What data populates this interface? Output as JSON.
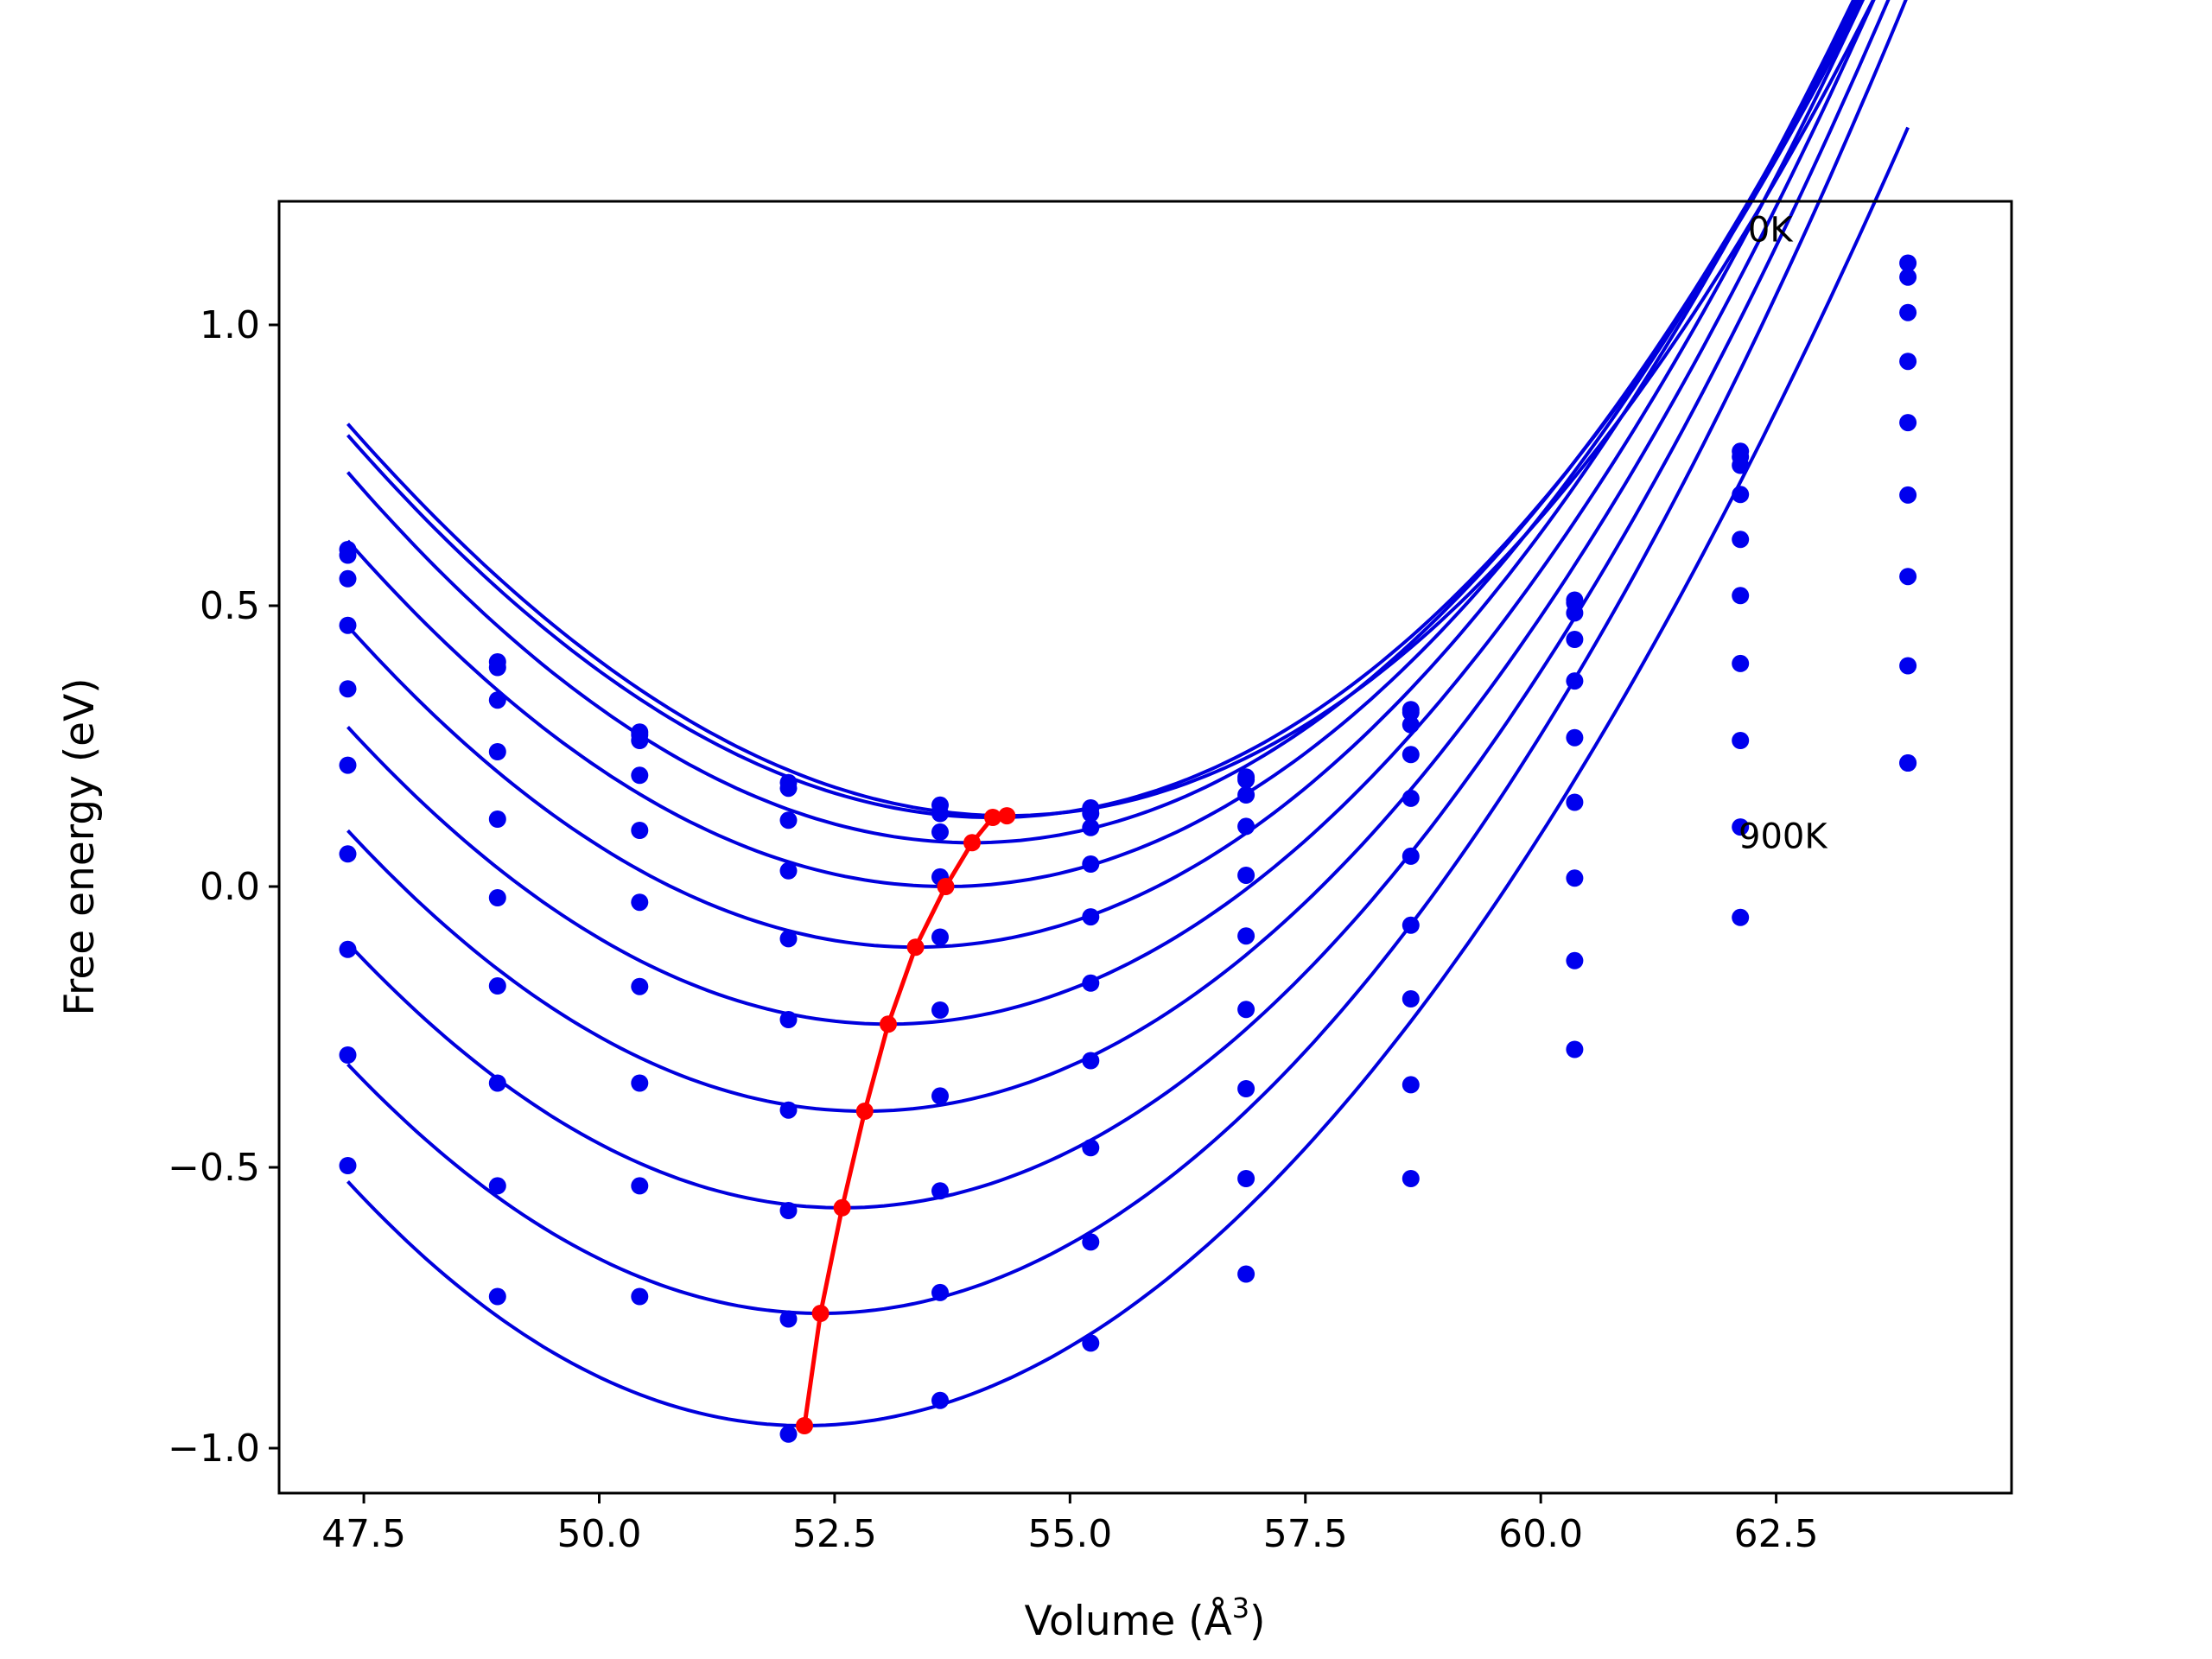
{
  "chart_data": {
    "type": "line",
    "title": "",
    "xlabel": "Volume (Å",
    "xlabel_sup": "3",
    "xlabel_close": ")",
    "ylabel": "Free energy (eV)",
    "xlim": [
      46.6,
      65.0
    ],
    "ylim": [
      -1.08,
      1.22
    ],
    "xticks": [
      47.5,
      50.0,
      52.5,
      55.0,
      57.5,
      60.0,
      62.5
    ],
    "xtick_labels": [
      "47.5",
      "50.0",
      "52.5",
      "55.0",
      "57.5",
      "60.0",
      "62.5"
    ],
    "yticks": [
      -1.0,
      -0.5,
      0.0,
      0.5,
      1.0
    ],
    "ytick_labels": [
      "−1.0",
      "−0.5",
      "0.0",
      "0.5",
      "1.0"
    ],
    "grid": false,
    "colors": {
      "fit": "#0000dd",
      "points": "#0000ee",
      "minima": "#ff0000"
    },
    "annotations": [
      {
        "text": "0K",
        "x": 62.2,
        "y": 1.17
      },
      {
        "text": "900K",
        "x": 62.1,
        "y": 0.09
      }
    ],
    "volumes": [
      47.33,
      48.92,
      50.43,
      52.01,
      53.62,
      55.22,
      56.87,
      58.62,
      60.36,
      62.12,
      63.9
    ],
    "series": [
      {
        "fit": {
          "a": 0.0155,
          "vmin": 54.33,
          "emin": 0.126,
          "b": 0.00018
        },
        "points": [
          0.6,
          0.4,
          0.275,
          0.185,
          0.145,
          0.14,
          0.195,
          0.315,
          0.51,
          0.775,
          1.11
        ]
      },
      {
        "fit": {
          "a": 0.0156,
          "vmin": 54.18,
          "emin": 0.123,
          "b": 0.00016
        },
        "points": [
          0.59,
          0.39,
          0.27,
          0.175,
          0.13,
          0.13,
          0.19,
          0.31,
          0.505,
          0.765,
          1.085
        ]
      },
      {
        "fit": {
          "a": 0.0158,
          "vmin": 53.96,
          "emin": 0.078,
          "b": 0.00012
        },
        "points": [
          0.548,
          0.332,
          0.26,
          0.118,
          0.097,
          0.105,
          0.163,
          0.288,
          0.487,
          0.75,
          1.022
        ]
      },
      {
        "fit": {
          "a": 0.0159,
          "vmin": 53.68,
          "emin": 0.0,
          "b": 0.0001
        },
        "points": [
          0.465,
          0.24,
          0.198,
          0.028,
          0.017,
          0.04,
          0.107,
          0.235,
          0.44,
          0.698,
          0.935
        ]
      },
      {
        "fit": {
          "a": 0.0162,
          "vmin": 53.36,
          "emin": -0.108,
          "b": 8e-05
        },
        "points": [
          0.352,
          0.12,
          0.1,
          -0.093,
          -0.09,
          -0.054,
          0.02,
          0.157,
          0.366,
          0.618,
          0.826
        ]
      },
      {
        "fit": {
          "a": 0.0164,
          "vmin": 53.07,
          "emin": -0.245,
          "b": 6e-05
        },
        "points": [
          0.216,
          -0.02,
          -0.028,
          -0.237,
          -0.22,
          -0.172,
          -0.088,
          0.054,
          0.265,
          0.518,
          0.697
        ]
      },
      {
        "fit": {
          "a": 0.0168,
          "vmin": 52.82,
          "emin": -0.4,
          "b": 4e-05
        },
        "points": [
          0.058,
          -0.177,
          -0.178,
          -0.398,
          -0.373,
          -0.31,
          -0.219,
          -0.069,
          0.15,
          0.397,
          0.552
        ]
      },
      {
        "fit": {
          "a": 0.0172,
          "vmin": 52.58,
          "emin": -0.572,
          "b": 2e-05
        },
        "points": [
          -0.112,
          -0.35,
          -0.35,
          -0.577,
          -0.542,
          -0.465,
          -0.36,
          -0.2,
          0.015,
          0.26,
          0.393
        ]
      },
      {
        "fit": {
          "a": 0.0176,
          "vmin": 52.35,
          "emin": -0.76,
          "b": 0.0
        },
        "points": [
          -0.3,
          -0.533,
          -0.533,
          -0.77,
          -0.723,
          -0.633,
          -0.52,
          -0.353,
          -0.132,
          0.106,
          0.22
        ]
      },
      {
        "fit": {
          "a": 0.018,
          "vmin": 52.18,
          "emin": -0.96,
          "b": -0.0001
        },
        "points": [
          -0.497,
          -0.73,
          -0.73,
          -0.975,
          -0.915,
          -0.813,
          -0.69,
          -0.52,
          -0.29,
          -0.055,
          0.22
        ]
      }
    ],
    "minima": {
      "x": [
        54.33,
        54.18,
        53.96,
        53.68,
        53.36,
        53.07,
        52.82,
        52.58,
        52.35,
        52.18
      ],
      "y": [
        0.126,
        0.123,
        0.078,
        0.0,
        -0.108,
        -0.245,
        -0.4,
        -0.572,
        -0.76,
        -0.96
      ]
    }
  }
}
